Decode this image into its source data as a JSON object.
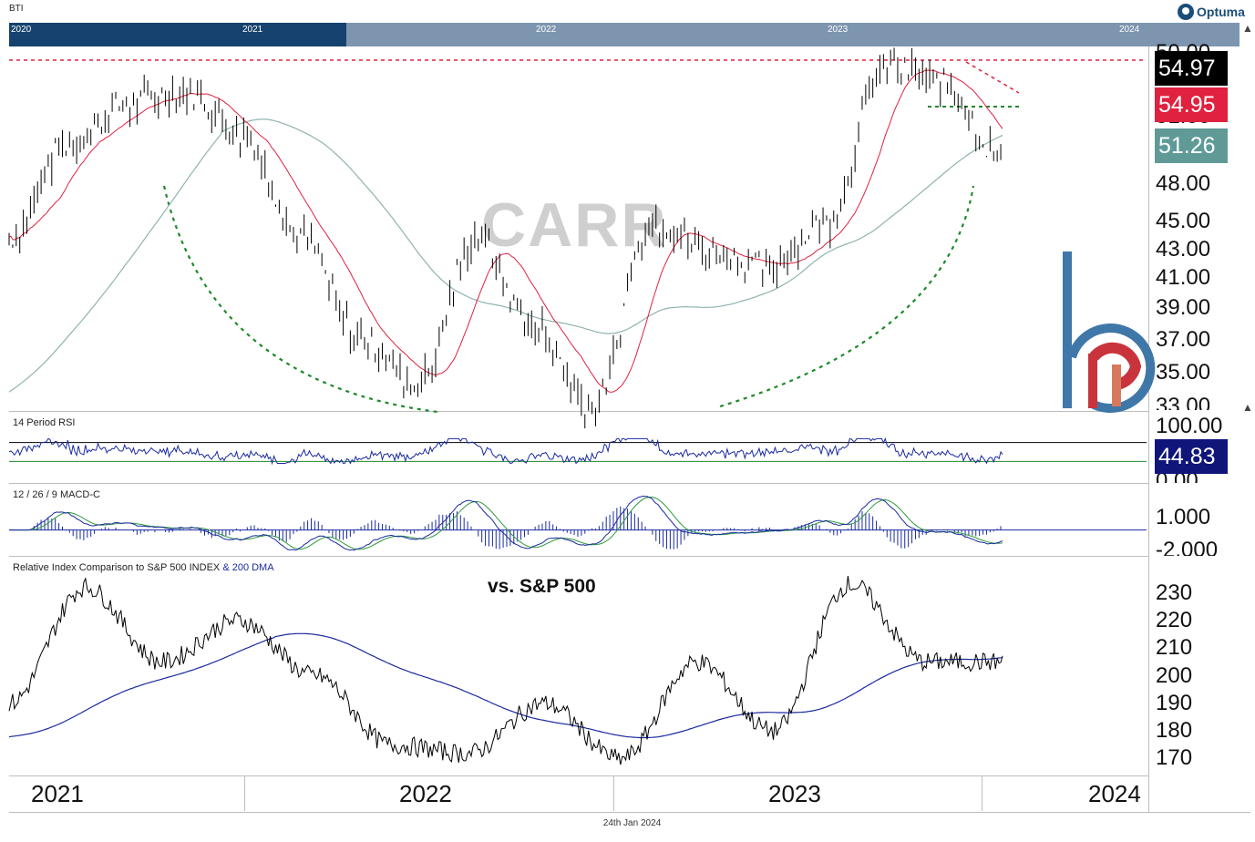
{
  "header": {
    "symbol": "BTI",
    "brand": "Optuma",
    "navigator_years": [
      "2020",
      "2021",
      "2022",
      "2023",
      "2024"
    ]
  },
  "watermark": "CARR",
  "price_panel": {
    "last_price": "54.97",
    "ma_fast": "54.95",
    "ma_slow": "51.26",
    "tick_labels": [
      "50.00",
      "51.00",
      "48.00",
      "45.00",
      "43.00",
      "41.00",
      "39.00",
      "37.00",
      "35.00",
      "33.00"
    ],
    "colors": {
      "price": "#000000",
      "ma_fast": "#e0213f",
      "ma_slow": "#8fb3b0",
      "resistance": "#e0213f",
      "support": "#1f8a2c"
    }
  },
  "rsi_panel": {
    "title": "14 Period RSI",
    "value": "44.83",
    "tick_labels": [
      "100.00",
      "0.00"
    ]
  },
  "macd_panel": {
    "title": "12 / 26 / 9 MACD-C",
    "tick_labels": [
      "1.000",
      "-2.000"
    ]
  },
  "relative_panel": {
    "title_prefix": "Relative Index Comparison to S&P 500 INDEX",
    "title_suffix": "& 200 DMA",
    "annotation": "vs. S&P 500",
    "tick_labels": [
      "230",
      "220",
      "210",
      "200",
      "190",
      "180",
      "170"
    ]
  },
  "time_axis": {
    "years": [
      "2021",
      "2022",
      "2023",
      "2024"
    ]
  },
  "footer_date": "24th Jan 2024",
  "chart_data": [
    {
      "type": "line",
      "name_shown": "BTI",
      "x": [
        "2021-01",
        "2021-04",
        "2021-06",
        "2021-08",
        "2021-10",
        "2022-01",
        "2022-03",
        "2022-05",
        "2022-07",
        "2022-09",
        "2022-11",
        "2023-01",
        "2023-03",
        "2023-05",
        "2023-07",
        "2023-09",
        "2023-11",
        "2024-01"
      ],
      "y": [
        44,
        50,
        52.5,
        53.5,
        50.5,
        44,
        37.5,
        34.5,
        44,
        38,
        33,
        45,
        43,
        42,
        45,
        55,
        54,
        49
      ],
      "ylim": [
        33,
        56
      ],
      "last": 54.97
    },
    {
      "type": "line",
      "name": "RSI",
      "ylim": [
        0,
        100
      ],
      "last": 44.83
    },
    {
      "type": "line",
      "name": "MACD",
      "ylim": [
        -2,
        3
      ]
    },
    {
      "type": "line",
      "name": "Relative to S&P 500",
      "x": [
        "2021-01",
        "2021-03",
        "2021-06",
        "2021-09",
        "2021-12",
        "2022-03",
        "2022-06",
        "2022-09",
        "2022-12",
        "2023-03",
        "2023-06",
        "2023-09",
        "2023-12",
        "2024-01"
      ],
      "y": [
        190,
        232,
        205,
        220,
        200,
        175,
        172,
        190,
        170,
        205,
        180,
        233,
        205,
        205
      ],
      "ylim": [
        165,
        240
      ]
    }
  ]
}
